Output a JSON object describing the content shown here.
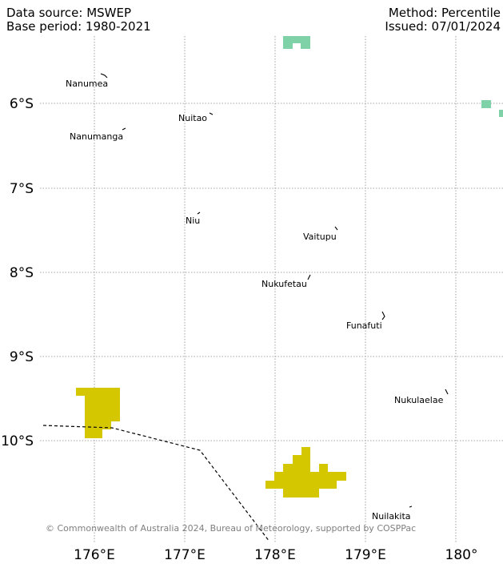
{
  "header": {
    "data_source": "Data source: MSWEP",
    "base_period": "Base period: 1980-2021",
    "method": "Method: Percentile",
    "issued": "Issued: 07/01/2024"
  },
  "map": {
    "lat_labels": [
      "6°S",
      "7°S",
      "8°S",
      "9°S",
      "10°S"
    ],
    "lon_labels": [
      "176°E",
      "177°E",
      "178°E",
      "179°E",
      "180°"
    ],
    "islands": [
      {
        "name": "Nanumea"
      },
      {
        "name": "Nuitao"
      },
      {
        "name": "Nanumanga"
      },
      {
        "name": "Niu"
      },
      {
        "name": "Vaitupu"
      },
      {
        "name": "Nukufetau"
      },
      {
        "name": "Funafuti"
      },
      {
        "name": "Nukulaelae"
      },
      {
        "name": "Nuilakita"
      }
    ],
    "colors": {
      "green_category": "#7fd1a8",
      "yellow_category": "#d4c700",
      "grid": "#8a8a8a",
      "boundary": "#000000"
    },
    "copyright": "© Commonwealth of Australia 2024, Bureau of Meteorology, supported by COSPPac"
  }
}
